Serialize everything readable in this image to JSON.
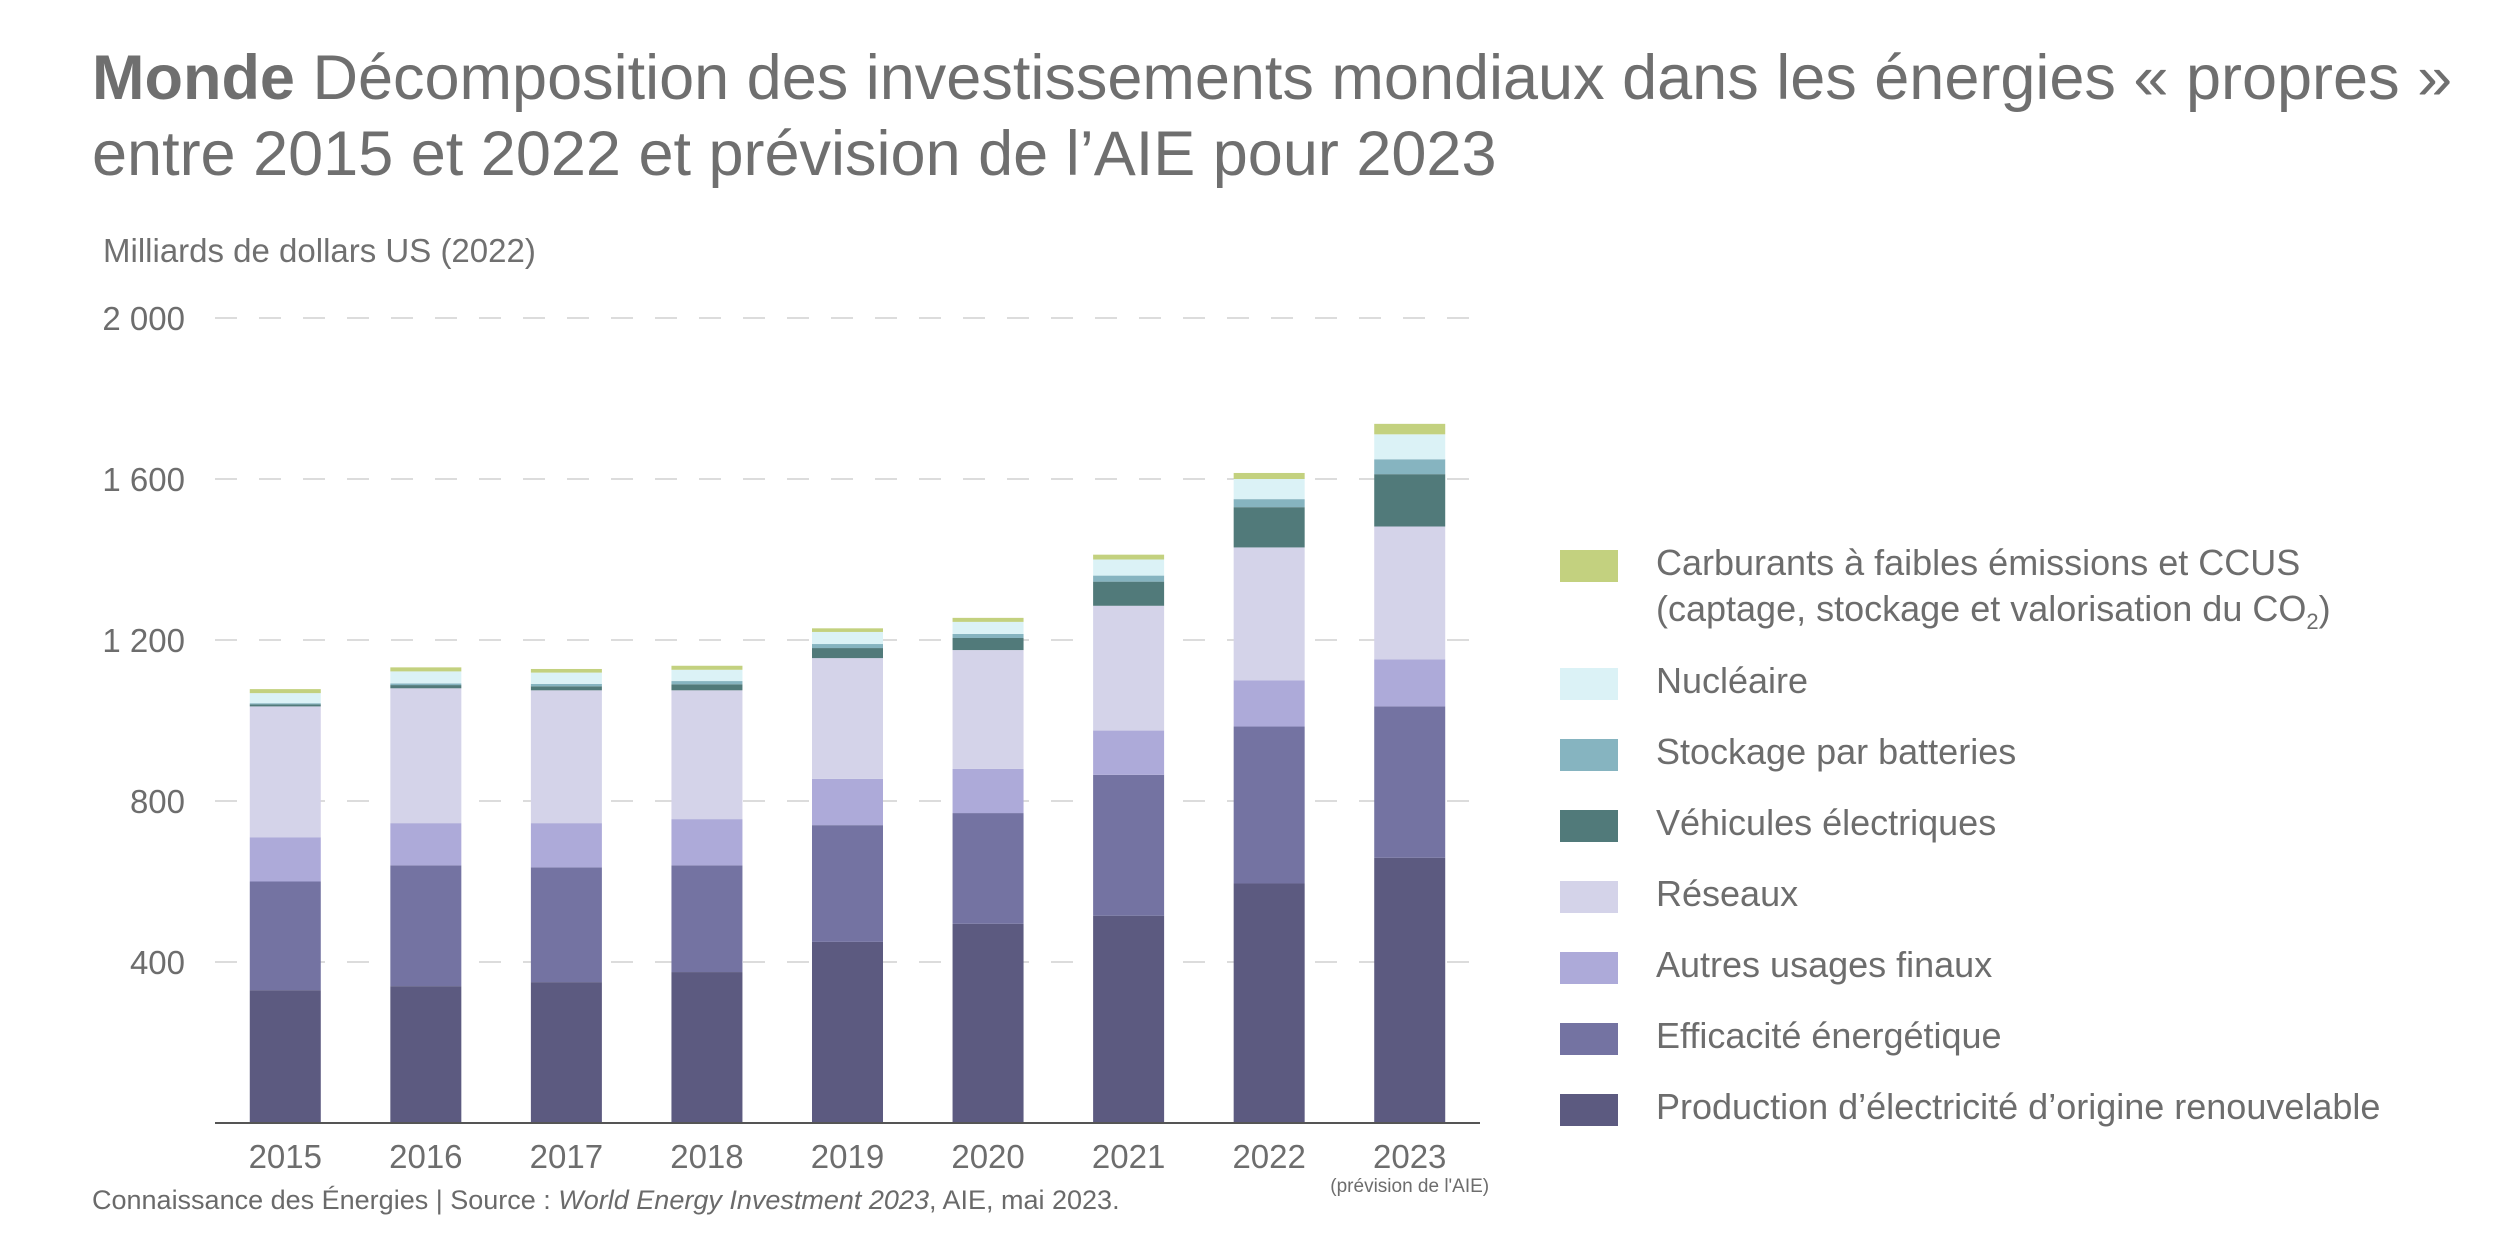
{
  "header": {
    "region": "Monde",
    "title": "Décomposition des investissements mondiaux dans les énergies « propres » entre 2015 et 2022 et prévision de l’AIE pour 2023"
  },
  "unit_label": "Milliards de dollars US (2022)",
  "footer": {
    "source_prefix": "Connaissance des Énergies | Source : ",
    "source_title": "World Energy Investment 2023",
    "source_suffix": ", AIE, mai 2023."
  },
  "legend": {
    "ccus_line1": "Carburants à faibles émissions et CCUS",
    "ccus_line2_prefix": "(captage, stockage et valorisation du CO",
    "ccus_line2_sub": "2",
    "ccus_line2_suffix": ")"
  },
  "chart_data": {
    "type": "bar",
    "stacked": true,
    "categories": [
      "2015",
      "2016",
      "2017",
      "2018",
      "2019",
      "2020",
      "2021",
      "2022",
      "2023"
    ],
    "category_notes": [
      "",
      "",
      "",
      "",
      "",
      "",
      "",
      "",
      "(prévision de l'AIE)"
    ],
    "ylim": [
      0,
      2000
    ],
    "yticks": [
      400,
      800,
      1200,
      1600,
      2000
    ],
    "ytick_labels": [
      "400",
      "800",
      "1 200",
      "1 600",
      "2 000"
    ],
    "grid": true,
    "legend_position": "right",
    "series": [
      {
        "name": "Production d’électricité d’origine renouvelable",
        "color": "#5c5a80",
        "values": [
          330,
          340,
          350,
          375,
          450,
          495,
          515,
          595,
          659
        ]
      },
      {
        "name": "Efficacité énergétique",
        "color": "#7473a2",
        "values": [
          270,
          300,
          285,
          265,
          290,
          275,
          350,
          390,
          376
        ]
      },
      {
        "name": "Autres usages finaux",
        "color": "#adaad9",
        "values": [
          110,
          105,
          110,
          115,
          115,
          110,
          110,
          115,
          117
        ]
      },
      {
        "name": "Réseaux",
        "color": "#d4d3e9",
        "values": [
          325,
          335,
          330,
          320,
          300,
          295,
          310,
          330,
          330
        ]
      },
      {
        "name": "Véhicules électriques",
        "color": "#517a7a",
        "values": [
          5,
          8,
          10,
          15,
          25,
          30,
          60,
          100,
          130
        ]
      },
      {
        "name": "Stockage par batteries",
        "color": "#86b4c0",
        "values": [
          3,
          4,
          6,
          8,
          10,
          10,
          15,
          20,
          37
        ]
      },
      {
        "name": "Nucléaire",
        "color": "#dbf2f6",
        "values": [
          25,
          30,
          28,
          28,
          30,
          30,
          40,
          50,
          62
        ]
      },
      {
        "name": "Carburants à faibles émissions et CCUS (captage, stockage et valorisation du CO2)",
        "color": "#c3d17f",
        "values": [
          10,
          10,
          9,
          10,
          9,
          10,
          12,
          15,
          26
        ]
      }
    ]
  }
}
